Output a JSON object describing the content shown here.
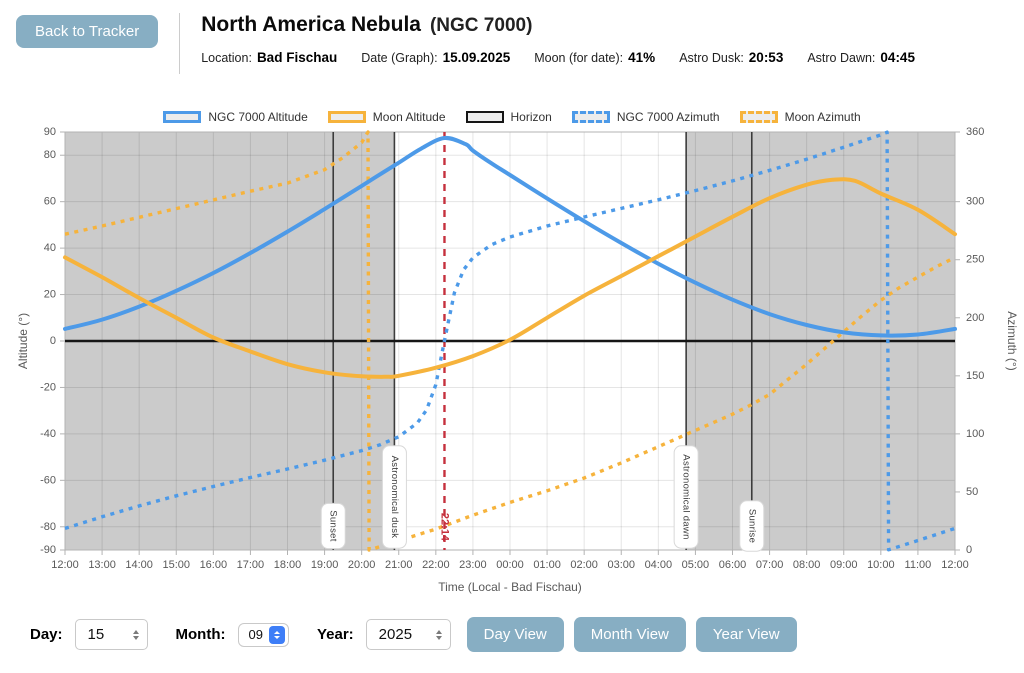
{
  "header": {
    "back_button": "Back to Tracker",
    "title": "North America Nebula",
    "subtitle": "(NGC 7000)",
    "info": [
      {
        "label": "Location:",
        "value": "Bad Fischau"
      },
      {
        "label": "Date (Graph):",
        "value": "15.09.2025"
      },
      {
        "label": "Moon (for date):",
        "value": "41%"
      },
      {
        "label": "Astro Dusk:",
        "value": "20:53"
      },
      {
        "label": "Astro Dawn:",
        "value": "04:45"
      }
    ]
  },
  "chart_data": {
    "type": "line",
    "x_axis": {
      "title": "Time (Local - Bad Fischau)",
      "hours_span": 24,
      "tick_labels": [
        "12:00",
        "13:00",
        "14:00",
        "15:00",
        "16:00",
        "17:00",
        "18:00",
        "19:00",
        "20:00",
        "21:00",
        "22:00",
        "23:00",
        "00:00",
        "01:00",
        "02:00",
        "03:00",
        "04:00",
        "05:00",
        "06:00",
        "07:00",
        "08:00",
        "09:00",
        "10:00",
        "11:00",
        "12:00"
      ]
    },
    "y_left": {
      "title": "Altitude (°)",
      "range": [
        -90,
        90
      ],
      "ticks": [
        90,
        80,
        60,
        40,
        20,
        0,
        -20,
        -40,
        -60,
        -80,
        -90
      ],
      "gridlines": [
        80,
        60,
        40,
        20,
        -20,
        -40,
        -60,
        -80
      ]
    },
    "y_right": {
      "title": "Azimuth (°)",
      "range": [
        0,
        360
      ],
      "ticks": [
        360,
        300,
        250,
        200,
        150,
        100,
        50,
        0
      ]
    },
    "colors": {
      "ngc": "#4d9ae8",
      "moon": "#f6b33c",
      "horizon": "#161616",
      "daylight_shade": "#cbcbcb",
      "current_time": "#c5303d",
      "event_line": "#3c3c3c",
      "grid": "rgba(0,0,0,0.10)",
      "plot_border": "#b3b3b3",
      "swatch_fill": "#ececec"
    },
    "legend": [
      {
        "label": "NGC 7000 Altitude",
        "color": "ngc",
        "dashed": false
      },
      {
        "label": "Moon Altitude",
        "color": "moon",
        "dashed": false
      },
      {
        "label": "Horizon",
        "color": "horizon",
        "dashed": false
      },
      {
        "label": "NGC 7000 Azimuth",
        "color": "ngc",
        "dashed": true
      },
      {
        "label": "Moon Azimuth",
        "color": "moon",
        "dashed": true
      }
    ],
    "shaded_daylight_bands_hours": [
      [
        0,
        8.883
      ],
      [
        16.75,
        24
      ]
    ],
    "events": [
      {
        "label": "Sunset",
        "hour": 7.233
      },
      {
        "label": "Astronomical dusk",
        "hour": 8.883
      },
      {
        "label": "Astronomical dawn",
        "hour": 16.75
      },
      {
        "label": "Sunrise",
        "hour": 18.52
      }
    ],
    "current_time": {
      "label": "22:14",
      "hour": 10.233
    },
    "horizon_alt": 0,
    "series": [
      {
        "name": "NGC 7000 Altitude",
        "axis": "alt",
        "style": "solid",
        "color": "ngc",
        "points": [
          [
            0,
            5.2
          ],
          [
            1,
            9.2
          ],
          [
            2,
            14.8
          ],
          [
            3,
            21.6
          ],
          [
            4,
            29.3
          ],
          [
            5,
            37.9
          ],
          [
            6,
            47.1
          ],
          [
            7,
            56.8
          ],
          [
            8,
            66.8
          ],
          [
            9,
            76.8
          ],
          [
            9.6,
            82.8
          ],
          [
            10.23,
            87.4
          ],
          [
            10.8,
            84.8
          ],
          [
            11,
            82.0
          ],
          [
            11.5,
            76.5
          ],
          [
            12,
            71.5
          ],
          [
            13,
            61.4
          ],
          [
            14,
            51.6
          ],
          [
            15,
            42.2
          ],
          [
            16,
            33.3
          ],
          [
            17,
            25.1
          ],
          [
            18,
            17.8
          ],
          [
            19,
            11.6
          ],
          [
            20,
            6.9
          ],
          [
            21,
            3.7
          ],
          [
            22,
            2.4
          ],
          [
            23,
            2.8
          ],
          [
            24,
            5.2
          ]
        ]
      },
      {
        "name": "Moon Altitude",
        "axis": "alt",
        "style": "solid",
        "color": "moon",
        "points": [
          [
            0,
            36
          ],
          [
            1,
            27.5
          ],
          [
            2,
            18.5
          ],
          [
            3,
            10
          ],
          [
            4,
            1.5
          ],
          [
            5,
            -4.5
          ],
          [
            6,
            -10
          ],
          [
            7,
            -13.5
          ],
          [
            8,
            -15.2
          ],
          [
            8.7,
            -15.4
          ],
          [
            9,
            -15
          ],
          [
            10,
            -11.5
          ],
          [
            11,
            -6.5
          ],
          [
            12,
            0.5
          ],
          [
            13,
            10
          ],
          [
            14,
            19.5
          ],
          [
            15,
            28
          ],
          [
            16,
            36.5
          ],
          [
            17,
            45
          ],
          [
            18,
            53.5
          ],
          [
            19,
            61.5
          ],
          [
            20,
            67.3
          ],
          [
            20.7,
            69.4
          ],
          [
            21.3,
            69
          ],
          [
            22,
            63.5
          ],
          [
            23,
            56.5
          ],
          [
            24,
            46
          ]
        ]
      },
      {
        "name": "NGC 7000 Azimuth",
        "axis": "az",
        "style": "dashed",
        "color": "ngc",
        "points": [
          [
            0,
            18.6
          ],
          [
            1,
            28.6
          ],
          [
            2,
            38
          ],
          [
            3,
            46.7
          ],
          [
            4,
            54.7
          ],
          [
            5,
            62.4
          ],
          [
            6,
            69.8
          ],
          [
            7,
            77.3
          ],
          [
            8,
            85.6
          ],
          [
            8.5,
            90.7
          ],
          [
            9,
            97.6
          ],
          [
            9.5,
            109.4
          ],
          [
            9.75,
            120.7
          ],
          [
            10,
            142.4
          ],
          [
            10.23,
            180
          ],
          [
            10.5,
            221.5
          ],
          [
            10.75,
            241.3
          ],
          [
            11,
            251.7
          ],
          [
            11.5,
            262.9
          ],
          [
            12,
            269.6
          ],
          [
            13,
            279
          ],
          [
            14,
            286.8
          ],
          [
            15,
            294.2
          ],
          [
            16,
            301.6
          ],
          [
            17,
            309.5
          ],
          [
            18,
            317.9
          ],
          [
            19,
            326.9
          ],
          [
            20,
            336.6
          ],
          [
            21,
            346.9
          ],
          [
            22,
            357.5
          ],
          [
            22.17,
            359.8
          ],
          [
            22.21,
            0.2
          ],
          [
            23,
            8.2
          ],
          [
            24,
            18.6
          ]
        ]
      },
      {
        "name": "Moon Azimuth",
        "axis": "az",
        "style": "dashed",
        "color": "moon",
        "points": [
          [
            0,
            272
          ],
          [
            1,
            279
          ],
          [
            2,
            286.5
          ],
          [
            3,
            294
          ],
          [
            4,
            301.5
          ],
          [
            5,
            309
          ],
          [
            6,
            316
          ],
          [
            7,
            327.5
          ],
          [
            7.5,
            338
          ],
          [
            8,
            351
          ],
          [
            8.17,
            360
          ],
          [
            8.2,
            0
          ],
          [
            9,
            8
          ],
          [
            10,
            18
          ],
          [
            11,
            30
          ],
          [
            12,
            41
          ],
          [
            13,
            51
          ],
          [
            14,
            62
          ],
          [
            15,
            75
          ],
          [
            16,
            89
          ],
          [
            17,
            103
          ],
          [
            18,
            117
          ],
          [
            18.5,
            125
          ],
          [
            19,
            134
          ],
          [
            19.5,
            147
          ],
          [
            20,
            160
          ],
          [
            20.5,
            174
          ],
          [
            21,
            188
          ],
          [
            21.5,
            202
          ],
          [
            22,
            215
          ],
          [
            22.5,
            226
          ],
          [
            23,
            235
          ],
          [
            23.5,
            244
          ],
          [
            24,
            252
          ]
        ]
      }
    ]
  },
  "controls": {
    "day_label": "Day:",
    "day_value": "15",
    "month_label": "Month:",
    "month_value": "09",
    "year_label": "Year:",
    "year_value": "2025",
    "buttons": [
      "Day View",
      "Month View",
      "Year View"
    ]
  }
}
